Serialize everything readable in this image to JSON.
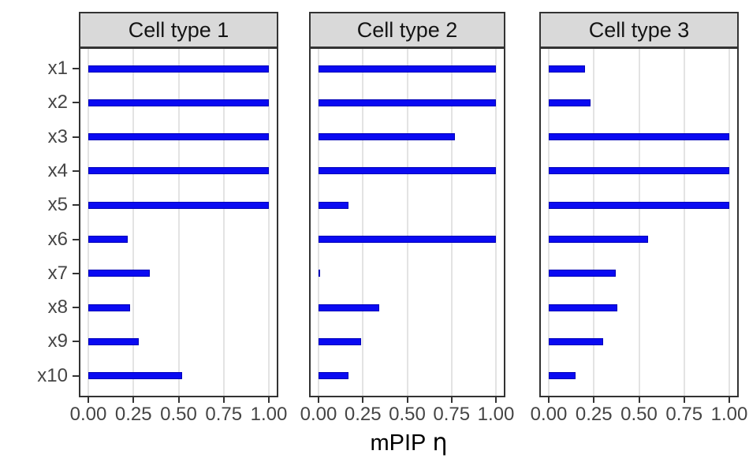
{
  "chart_data": {
    "type": "bar",
    "orientation": "horizontal",
    "title": "",
    "xlabel_main": "mPIP",
    "xlabel_symbol": "η",
    "ylabel": "",
    "categories": [
      "x1",
      "x2",
      "x3",
      "x4",
      "x5",
      "x6",
      "x7",
      "x8",
      "x9",
      "x10"
    ],
    "facets": [
      {
        "label": "Cell type 1",
        "values": [
          1.0,
          1.0,
          1.0,
          1.0,
          1.0,
          0.22,
          0.34,
          0.23,
          0.28,
          0.52
        ]
      },
      {
        "label": "Cell type 2",
        "values": [
          1.0,
          1.0,
          0.77,
          1.0,
          0.17,
          1.0,
          0.01,
          0.34,
          0.24,
          0.17
        ]
      },
      {
        "label": "Cell type 3",
        "values": [
          0.2,
          0.23,
          1.0,
          1.0,
          1.0,
          0.55,
          0.37,
          0.38,
          0.3,
          0.15
        ]
      }
    ],
    "x_tick_labels": [
      "0.00",
      "0.25",
      "0.50",
      "0.75",
      "1.00"
    ],
    "x_tick_values": [
      0,
      0.25,
      0.5,
      0.75,
      1
    ],
    "xlim": [
      0,
      1
    ],
    "grid": "vertical-major-only",
    "legend": "none",
    "colors": {
      "bar_fill": "#0a0af2",
      "bar_border": "#0000b8",
      "strip_fill": "#d9d9d9",
      "panel_border": "#333333",
      "gridline": "#e3e3e3",
      "axis_text": "#454545",
      "tick_mark": "#333333",
      "title_text": "#000000"
    }
  }
}
